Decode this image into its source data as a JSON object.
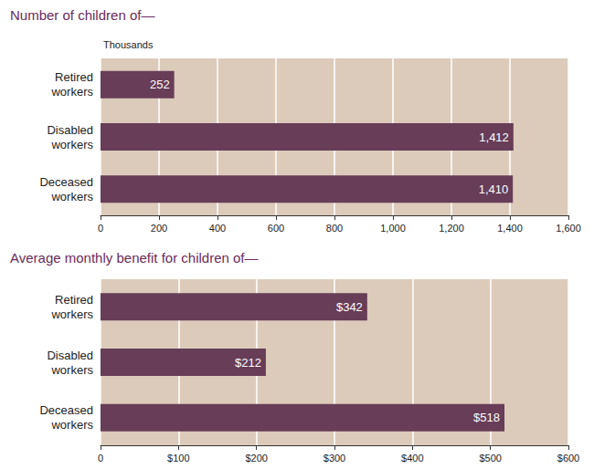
{
  "chart_data": [
    {
      "type": "bar",
      "orientation": "horizontal",
      "title": "Number of children of—",
      "xlabel": "Thousands",
      "categories": [
        "Retired workers",
        "Disabled workers",
        "Deceased workers"
      ],
      "values": [
        252,
        1412,
        1410
      ],
      "value_labels": [
        "252",
        "1,412",
        "1,410"
      ],
      "data_labels": true,
      "color": "#673d57",
      "grid": true,
      "xlim": [
        0,
        1600
      ],
      "xticks": [
        0,
        200,
        400,
        600,
        800,
        {
          "value": 1000,
          "label": "1,000"
        },
        {
          "value": 1200,
          "label": "1,200"
        },
        {
          "value": 1400,
          "label": "1,400"
        },
        {
          "value": 1600,
          "label": "1,600"
        }
      ]
    },
    {
      "type": "bar",
      "orientation": "horizontal",
      "title": "Average monthly benefit for children of—",
      "categories": [
        "Retired workers",
        "Disabled workers",
        "Deceased workers"
      ],
      "values": [
        342,
        212,
        518
      ],
      "value_labels": [
        "$342",
        "$212",
        "$518"
      ],
      "data_labels": true,
      "color": "#673d57",
      "grid": true,
      "xlim": [
        0,
        600
      ],
      "xticks": [
        0,
        {
          "value": 100,
          "label": "$100"
        },
        {
          "value": 200,
          "label": "$200"
        },
        {
          "value": 300,
          "label": "$300"
        },
        {
          "value": 400,
          "label": "$400"
        },
        {
          "value": 500,
          "label": "$500"
        },
        {
          "value": 600,
          "label": "$600"
        }
      ]
    }
  ]
}
